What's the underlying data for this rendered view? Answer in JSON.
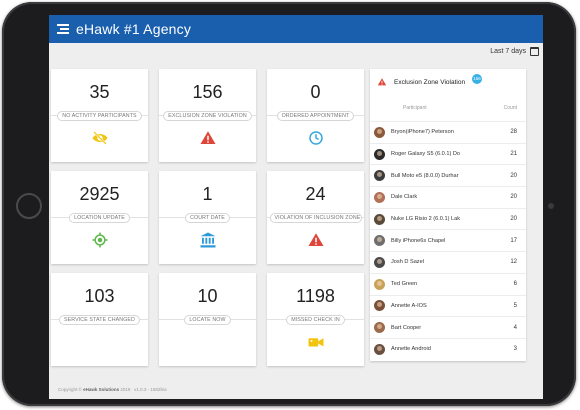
{
  "app": {
    "title": "eHawk #1 Agency",
    "date_range": "Last 7 days"
  },
  "cards": [
    {
      "value": "35",
      "label": "NO ACTIVITY PARTICIPANTS",
      "icon": "visibility-off-icon",
      "icon_color": "#f2c40f"
    },
    {
      "value": "156",
      "label": "EXCLUSION ZONE VIOLATION",
      "icon": "warning-icon",
      "icon_color": "#e0453a"
    },
    {
      "value": "0",
      "label": "ORDERED APPOINTMENT",
      "icon": "clock-icon",
      "icon_color": "#3aa7dc"
    },
    {
      "value": "2925",
      "label": "LOCATION UPDATE",
      "icon": "gps-target-icon",
      "icon_color": "#5fb84d"
    },
    {
      "value": "1",
      "label": "COURT DATE",
      "icon": "courthouse-icon",
      "icon_color": "#2b9ad6"
    },
    {
      "value": "24",
      "label": "VIOLATION OF INCLUSION ZONE",
      "icon": "warning-icon",
      "icon_color": "#e0453a"
    },
    {
      "value": "103",
      "label": "SERVICE STATE CHANGED",
      "icon": "",
      "icon_color": ""
    },
    {
      "value": "10",
      "label": "LOCATE NOW",
      "icon": "",
      "icon_color": ""
    },
    {
      "value": "1198",
      "label": "MISSED CHECK IN",
      "icon": "video-camera-icon",
      "icon_color": "#f2c40f"
    }
  ],
  "panel": {
    "title": "Exclusion Zone Violation",
    "badge": "156",
    "col_participant": "Participant",
    "col_count": "Count",
    "rows": [
      {
        "name": "Bryon(iPhone7) Peterson",
        "count": "28"
      },
      {
        "name": "Roger Galaxy S5 (6.0.1) Do",
        "count": "21"
      },
      {
        "name": "Bull Moto e5 (8.0.0) Durhar",
        "count": "20"
      },
      {
        "name": "Dale Clark",
        "count": "20"
      },
      {
        "name": "Nuke LG Risio 2 (6.0.1) Lak",
        "count": "20"
      },
      {
        "name": "Billy iPhone6s Chapel",
        "count": "17"
      },
      {
        "name": "Josh D Sazel",
        "count": "12"
      },
      {
        "name": "Ted Green",
        "count": "6"
      },
      {
        "name": "Annette A-IOS",
        "count": "5"
      },
      {
        "name": "Bart Cooper",
        "count": "4"
      },
      {
        "name": "Annette Android",
        "count": "3"
      }
    ]
  },
  "footer": {
    "prefix": "Copyright ©",
    "company": "eHawk Solutions",
    "year": "2019",
    "version": "v1.0.3 - 1582fea"
  }
}
